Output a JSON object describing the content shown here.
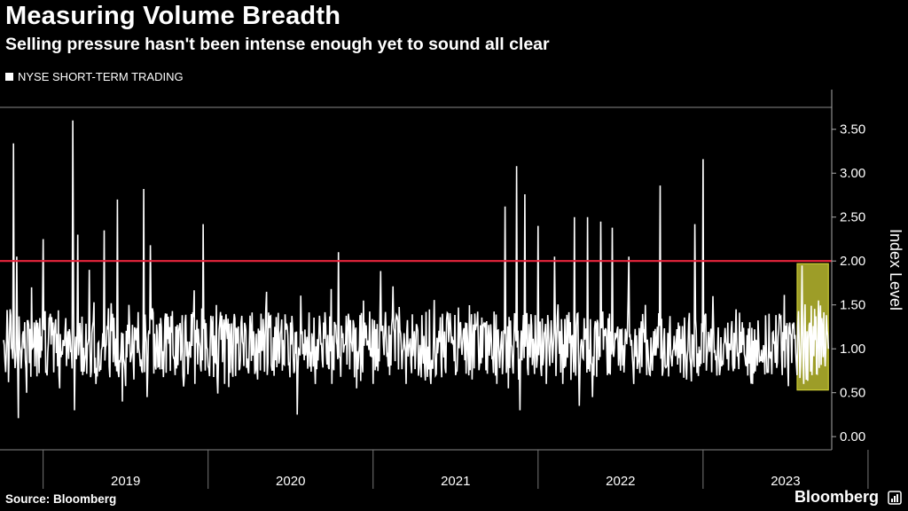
{
  "title": "Measuring Volume Breadth",
  "subtitle": "Selling pressure hasn't been intense enough yet to sound all clear",
  "legend": {
    "label": "NYSE SHORT-TERM TRADING",
    "color": "#ffffff"
  },
  "source": "Source: Bloomberg",
  "brand": "Bloomberg",
  "colors": {
    "background": "#000000",
    "series": "#ffffff",
    "threshold": "#e8243c",
    "highlight": "#d9d938"
  },
  "chart_data": {
    "type": "line",
    "title": "Measuring Volume Breadth",
    "subtitle": "Selling pressure hasn't been intense enough yet to sound all clear",
    "xlabel": "",
    "ylabel": "Index Level",
    "x_range": [
      2018.76,
      2023.78
    ],
    "ylim": [
      -0.15,
      3.75
    ],
    "y_ticks": [
      "0.00",
      "0.50",
      "1.00",
      "1.50",
      "2.00",
      "2.50",
      "3.00",
      "3.50"
    ],
    "x_ticks": [
      "2019",
      "2020",
      "2021",
      "2022",
      "2023"
    ],
    "grid": false,
    "legend_position": "top-left",
    "threshold": {
      "y": 2.0
    },
    "highlight": {
      "x_start": 2023.57,
      "x_end": 2023.76,
      "y_start": 0.53,
      "y_end": 1.97
    },
    "series": [
      {
        "name": "NYSE SHORT-TERM TRADING",
        "points": [
          [
            2018.76,
            1.1
          ],
          [
            2018.79,
            0.62
          ],
          [
            2018.8,
            1.45
          ],
          [
            2018.82,
            3.34
          ],
          [
            2018.83,
            0.78
          ],
          [
            2018.84,
            2.05
          ],
          [
            2018.85,
            0.21
          ],
          [
            2018.88,
            1.2
          ],
          [
            2018.9,
            0.5
          ],
          [
            2018.93,
            1.7
          ],
          [
            2018.95,
            0.8
          ],
          [
            2018.98,
            1.35
          ],
          [
            2019.0,
            2.25
          ],
          [
            2019.02,
            0.75
          ],
          [
            2019.06,
            1.3
          ],
          [
            2019.1,
            0.55
          ],
          [
            2019.15,
            1.2
          ],
          [
            2019.18,
            3.6
          ],
          [
            2019.19,
            0.3
          ],
          [
            2019.21,
            2.3
          ],
          [
            2019.24,
            0.7
          ],
          [
            2019.28,
            1.9
          ],
          [
            2019.32,
            0.6
          ],
          [
            2019.37,
            2.35
          ],
          [
            2019.4,
            0.8
          ],
          [
            2019.45,
            2.7
          ],
          [
            2019.48,
            0.4
          ],
          [
            2019.52,
            1.5
          ],
          [
            2019.55,
            0.65
          ],
          [
            2019.61,
            2.82
          ],
          [
            2019.63,
            0.45
          ],
          [
            2019.65,
            2.18
          ],
          [
            2019.7,
            0.8
          ],
          [
            2019.75,
            1.4
          ],
          [
            2019.8,
            0.7
          ],
          [
            2019.86,
            1.3
          ],
          [
            2019.92,
            0.6
          ],
          [
            2019.97,
            2.42
          ],
          [
            2020.0,
            0.8
          ],
          [
            2020.05,
            1.5
          ],
          [
            2020.1,
            0.6
          ],
          [
            2020.2,
            1.3
          ],
          [
            2020.3,
            0.65
          ],
          [
            2020.35,
            1.45
          ],
          [
            2020.45,
            0.75
          ],
          [
            2020.5,
            1.3
          ],
          [
            2020.54,
            0.25
          ],
          [
            2020.57,
            1.2
          ],
          [
            2020.65,
            0.6
          ],
          [
            2020.7,
            1.3
          ],
          [
            2020.75,
            0.6
          ],
          [
            2020.79,
            2.1
          ],
          [
            2020.8,
            0.9
          ],
          [
            2020.85,
            1.4
          ],
          [
            2020.9,
            0.55
          ],
          [
            2020.95,
            1.3
          ],
          [
            2021.0,
            0.6
          ],
          [
            2021.05,
            1.2
          ],
          [
            2021.1,
            0.7
          ],
          [
            2021.15,
            1.3
          ],
          [
            2021.2,
            0.6
          ],
          [
            2021.25,
            1.2
          ],
          [
            2021.35,
            0.6
          ],
          [
            2021.42,
            1.4
          ],
          [
            2021.5,
            0.7
          ],
          [
            2021.56,
            1.3
          ],
          [
            2021.6,
            0.65
          ],
          [
            2021.68,
            1.3
          ],
          [
            2021.75,
            0.6
          ],
          [
            2021.78,
            1.2
          ],
          [
            2021.8,
            2.62
          ],
          [
            2021.82,
            0.55
          ],
          [
            2021.87,
            3.08
          ],
          [
            2021.89,
            0.3
          ],
          [
            2021.92,
            2.76
          ],
          [
            2021.94,
            0.7
          ],
          [
            2022.0,
            2.4
          ],
          [
            2022.05,
            0.6
          ],
          [
            2022.1,
            2.05
          ],
          [
            2022.15,
            0.6
          ],
          [
            2022.22,
            2.5
          ],
          [
            2022.25,
            0.35
          ],
          [
            2022.3,
            2.5
          ],
          [
            2022.33,
            0.45
          ],
          [
            2022.38,
            2.45
          ],
          [
            2022.42,
            0.7
          ],
          [
            2022.45,
            2.38
          ],
          [
            2022.5,
            0.75
          ],
          [
            2022.55,
            2.05
          ],
          [
            2022.58,
            0.6
          ],
          [
            2022.65,
            1.5
          ],
          [
            2022.68,
            0.7
          ],
          [
            2022.74,
            2.86
          ],
          [
            2022.77,
            0.8
          ],
          [
            2022.85,
            1.3
          ],
          [
            2022.9,
            0.65
          ],
          [
            2022.95,
            2.42
          ],
          [
            2022.98,
            0.8
          ],
          [
            2023.0,
            3.16
          ],
          [
            2023.02,
            0.75
          ],
          [
            2023.06,
            1.6
          ],
          [
            2023.1,
            0.7
          ],
          [
            2023.2,
            1.45
          ],
          [
            2023.3,
            0.6
          ],
          [
            2023.4,
            1.4
          ],
          [
            2023.48,
            0.7
          ],
          [
            2023.55,
            1.3
          ],
          [
            2023.57,
            0.7
          ],
          [
            2023.6,
            1.95
          ],
          [
            2023.61,
            0.6
          ],
          [
            2023.63,
            1.2
          ],
          [
            2023.66,
            0.7
          ],
          [
            2023.68,
            1.1
          ],
          [
            2023.7,
            1.55
          ],
          [
            2023.72,
            1.35
          ],
          [
            2023.74,
            0.8
          ],
          [
            2023.76,
            1.0
          ]
        ]
      }
    ]
  }
}
